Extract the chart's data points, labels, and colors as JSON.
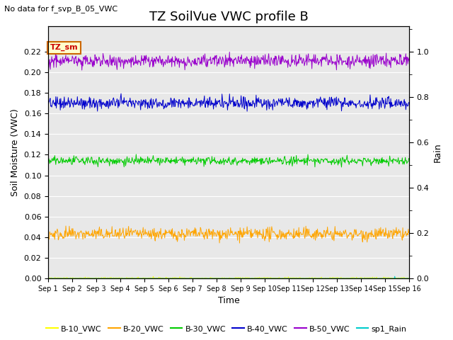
{
  "title": "TZ SoilVue VWC profile B",
  "no_data_text": "No data for f_svp_B_05_VWC",
  "xlabel": "Time",
  "ylabel": "Soil Moisture (VWC)",
  "ylabel_right": "Rain",
  "ylim": [
    0.0,
    0.2444
  ],
  "ylim_right": [
    0.0,
    1.1111
  ],
  "yticks": [
    0.0,
    0.02,
    0.04,
    0.06,
    0.08,
    0.1,
    0.12,
    0.14,
    0.16,
    0.18,
    0.2,
    0.22
  ],
  "yticks_right_major": [
    0.0,
    0.2,
    0.4,
    0.6,
    0.8,
    1.0
  ],
  "xtick_labels": [
    "Sep 1",
    "Sep 2",
    "Sep 3",
    "Sep 4",
    "Sep 5",
    "Sep 6",
    "Sep 7",
    "Sep 8",
    "Sep 9",
    "Sep 10",
    "Sep 11",
    "Sep 12",
    "Sep 13",
    "Sep 14",
    "Sep 15",
    "Sep 16"
  ],
  "n_points": 720,
  "series": {
    "B10": {
      "mean": 0.0,
      "std": 0.0005,
      "color": "#FFFF00",
      "label": "B-10_VWC"
    },
    "B20": {
      "mean": 0.043,
      "std": 0.003,
      "color": "#FFA500",
      "label": "B-20_VWC"
    },
    "B30": {
      "mean": 0.114,
      "std": 0.002,
      "color": "#00CC00",
      "label": "B-30_VWC"
    },
    "B40": {
      "mean": 0.17,
      "std": 0.003,
      "color": "#0000CC",
      "label": "B-40_VWC"
    },
    "B50": {
      "mean": 0.211,
      "std": 0.003,
      "color": "#9900CC",
      "label": "B-50_VWC"
    },
    "Rain": {
      "mean": 0.0,
      "std": 0.0,
      "color": "#00CCCC",
      "label": "sp1_Rain"
    }
  },
  "annotation_text": "TZ_sm",
  "background_color": "#E8E8E8",
  "title_fontsize": 13,
  "axis_fontsize": 9,
  "tick_fontsize": 8,
  "legend_fontsize": 8
}
